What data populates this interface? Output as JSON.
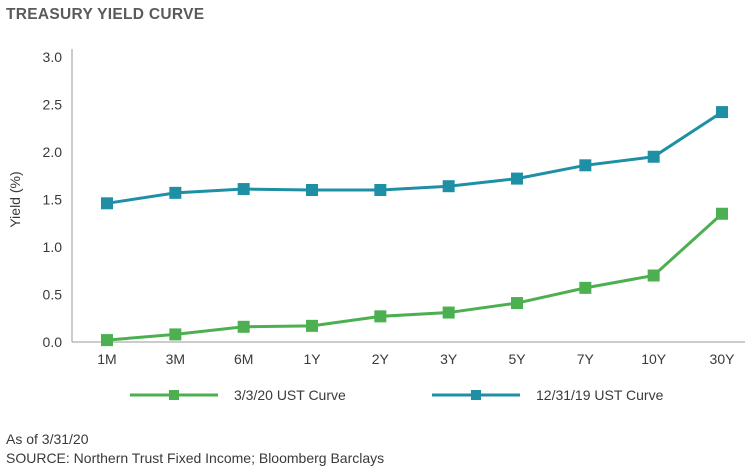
{
  "chart_data": {
    "type": "line",
    "title": "TREASURY YIELD CURVE",
    "xlabel": "",
    "ylabel": "Yield (%)",
    "categories": [
      "1M",
      "3M",
      "6M",
      "1Y",
      "2Y",
      "3Y",
      "5Y",
      "7Y",
      "10Y",
      "30Y"
    ],
    "ylim": [
      0,
      3.0
    ],
    "yticks": [
      "0.0",
      "0.5",
      "1.0",
      "1.5",
      "2.0",
      "2.5",
      "3.0"
    ],
    "grid": false,
    "legend_position": "bottom",
    "series": [
      {
        "name": "3/3/20 UST Curve",
        "color": "#4caf50",
        "values": [
          0.02,
          0.08,
          0.16,
          0.17,
          0.27,
          0.31,
          0.41,
          0.57,
          0.7,
          1.35
        ]
      },
      {
        "name": "12/31/19 UST Curve",
        "color": "#1f8fa6",
        "values": [
          1.46,
          1.57,
          1.61,
          1.6,
          1.6,
          1.64,
          1.72,
          1.86,
          1.95,
          2.42
        ]
      }
    ]
  },
  "footer": {
    "as_of": "As of 3/31/20",
    "source": "SOURCE: Northern Trust Fixed Income; Bloomberg Barclays"
  }
}
